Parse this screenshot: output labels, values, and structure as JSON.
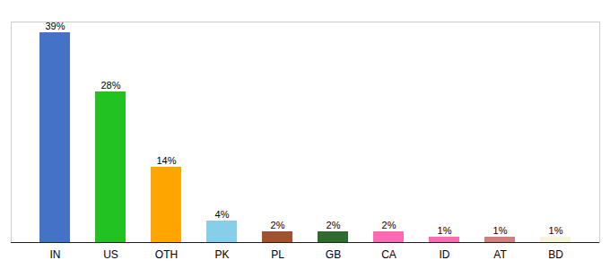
{
  "chart_data": {
    "type": "bar",
    "categories": [
      "IN",
      "US",
      "OTH",
      "PK",
      "PL",
      "GB",
      "CA",
      "ID",
      "AT",
      "BD"
    ],
    "values": [
      39,
      28,
      14,
      4,
      2,
      2,
      2,
      1,
      1,
      1
    ],
    "value_labels": [
      "39%",
      "28%",
      "14%",
      "4%",
      "2%",
      "2%",
      "2%",
      "1%",
      "1%",
      "1%"
    ],
    "colors": [
      "#4472c4",
      "#21c221",
      "#ffa500",
      "#87ceeb",
      "#a0522d",
      "#2e6b2e",
      "#ff69b4",
      "#ff69b4",
      "#cd8080",
      "#f5f5dc"
    ],
    "ylim": [
      0,
      41
    ],
    "data_labels": true,
    "tick_labels": "x"
  }
}
